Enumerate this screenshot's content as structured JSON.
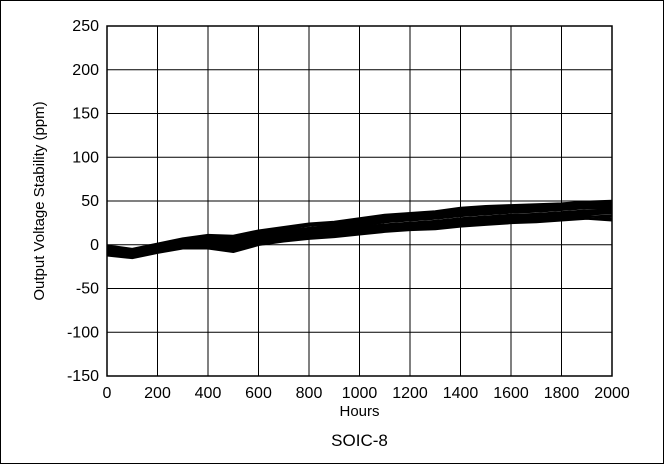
{
  "chart_data": {
    "type": "line",
    "title": "",
    "caption": "SOIC-8",
    "xlabel": "Hours",
    "ylabel": "Output Voltage Stability (ppm)",
    "xlim": [
      0,
      2000
    ],
    "ylim": [
      -150,
      250
    ],
    "xticks": [
      0,
      200,
      400,
      600,
      800,
      1000,
      1200,
      1400,
      1600,
      1800,
      2000
    ],
    "yticks": [
      -150,
      -100,
      -50,
      0,
      50,
      100,
      150,
      200,
      250
    ],
    "grid": true,
    "legend": "none",
    "line_color": "#000000",
    "x": [
      0,
      100,
      200,
      300,
      400,
      500,
      600,
      700,
      800,
      900,
      1000,
      1100,
      1200,
      1300,
      1400,
      1500,
      1600,
      1700,
      1800,
      1900,
      2000
    ],
    "series": [
      {
        "values": [
          -2,
          -6,
          0,
          6,
          10,
          8,
          14,
          18,
          22,
          24,
          28,
          32,
          34,
          36,
          40,
          42,
          44,
          45,
          46,
          48,
          48
        ]
      },
      {
        "values": [
          -4,
          -8,
          -2,
          3,
          6,
          4,
          10,
          14,
          17,
          20,
          24,
          27,
          29,
          31,
          35,
          37,
          39,
          40,
          41,
          43,
          44
        ]
      },
      {
        "values": [
          -6,
          -10,
          -4,
          1,
          3,
          0,
          7,
          11,
          14,
          17,
          20,
          23,
          25,
          27,
          30,
          32,
          34,
          35,
          37,
          39,
          40
        ]
      },
      {
        "values": [
          -8,
          -12,
          -6,
          -1,
          1,
          -3,
          4,
          8,
          11,
          14,
          17,
          20,
          22,
          23,
          26,
          28,
          30,
          31,
          33,
          35,
          36
        ]
      },
      {
        "values": [
          -10,
          -14,
          -8,
          -3,
          -2,
          -6,
          2,
          6,
          9,
          11,
          14,
          17,
          19,
          20,
          23,
          25,
          27,
          28,
          30,
          32,
          33
        ]
      },
      {
        "values": [
          -5,
          -9,
          -3,
          2,
          5,
          2,
          9,
          13,
          16,
          19,
          22,
          26,
          28,
          30,
          33,
          35,
          37,
          38,
          40,
          42,
          42
        ]
      },
      {
        "values": [
          -3,
          -7,
          -1,
          4,
          8,
          6,
          12,
          16,
          19,
          22,
          26,
          30,
          32,
          34,
          38,
          40,
          42,
          43,
          44,
          46,
          46
        ]
      },
      {
        "values": [
          -7,
          -11,
          -5,
          0,
          2,
          -1,
          6,
          10,
          12,
          15,
          19,
          22,
          24,
          25,
          28,
          30,
          32,
          33,
          35,
          37,
          38
        ]
      },
      {
        "values": [
          -9,
          -13,
          -7,
          -2,
          0,
          -4,
          3,
          7,
          10,
          12,
          15,
          18,
          20,
          22,
          24,
          26,
          28,
          30,
          31,
          33,
          30
        ]
      },
      {
        "values": [
          -1,
          -5,
          1,
          7,
          11,
          10,
          16,
          20,
          24,
          26,
          30,
          34,
          36,
          38,
          42,
          44,
          45,
          46,
          47,
          49,
          50
        ]
      },
      {
        "values": [
          -12,
          -15,
          -9,
          -4,
          -4,
          -8,
          0,
          4,
          7,
          9,
          12,
          15,
          17,
          18,
          21,
          23,
          25,
          26,
          28,
          30,
          28
        ]
      },
      {
        "values": [
          -4,
          -9,
          -3,
          3,
          7,
          5,
          11,
          15,
          18,
          21,
          25,
          28,
          31,
          33,
          36,
          38,
          40,
          41,
          43,
          45,
          45
        ]
      }
    ]
  }
}
